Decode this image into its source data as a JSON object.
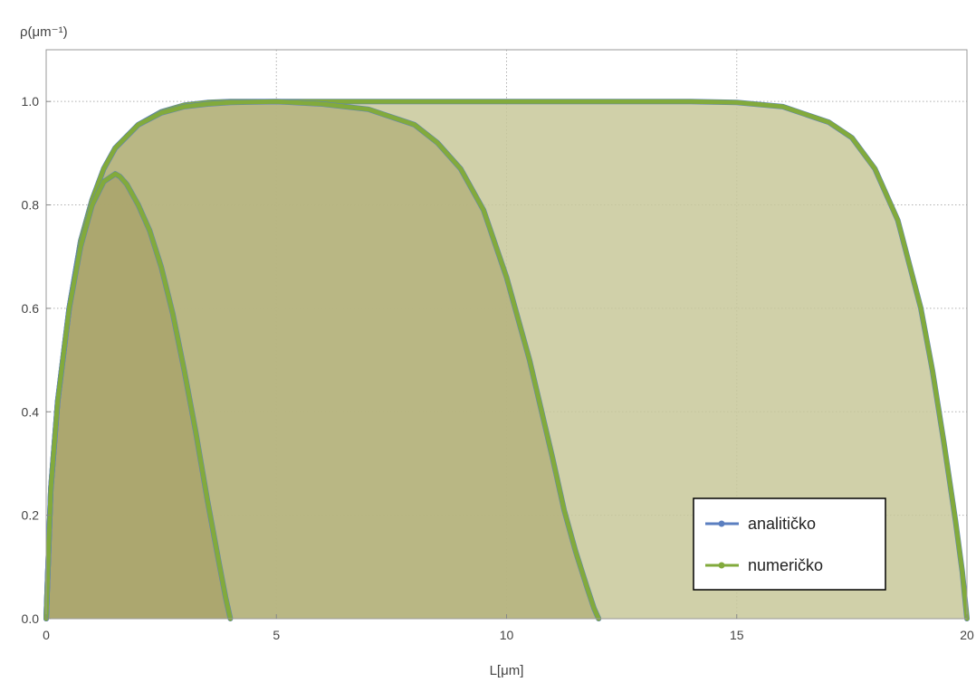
{
  "chart_data": {
    "type": "area",
    "title": "",
    "xlabel": "L[μm]",
    "ylabel": "ρ(μm⁻¹)",
    "xlim": [
      0,
      20
    ],
    "ylim": [
      0,
      1.1
    ],
    "xticks": [
      0,
      5,
      10,
      15,
      20
    ],
    "yticks": [
      0.0,
      0.2,
      0.4,
      0.6,
      0.8,
      1.0
    ],
    "xtick_labels": [
      "0",
      "5",
      "10",
      "15",
      "20"
    ],
    "ytick_labels": [
      "0.0",
      "0.2",
      "0.4",
      "0.6",
      "0.8",
      "1.0"
    ],
    "grid": true,
    "legend_position": "bottom-right",
    "legend": [
      {
        "name": "analitičko",
        "color": "#5b7fc0"
      },
      {
        "name": "numeričko",
        "color": "#82aa3c"
      }
    ],
    "curves": [
      {
        "L": 20,
        "fill": "#c8c89a",
        "x": [
          0,
          0.1,
          0.25,
          0.5,
          0.75,
          1.0,
          1.25,
          1.5,
          2,
          2.5,
          3,
          3.5,
          4,
          5,
          6,
          8,
          10,
          12,
          14,
          15,
          16,
          17,
          17.5,
          18,
          18.5,
          19,
          19.25,
          19.5,
          19.75,
          19.9,
          20
        ],
        "y": [
          0,
          0.25,
          0.42,
          0.6,
          0.73,
          0.81,
          0.87,
          0.91,
          0.955,
          0.98,
          0.993,
          0.998,
          1.0,
          1.0,
          1.0,
          1.0,
          1.0,
          1.0,
          1.0,
          0.998,
          0.99,
          0.96,
          0.93,
          0.87,
          0.77,
          0.6,
          0.48,
          0.34,
          0.19,
          0.09,
          0
        ]
      },
      {
        "L": 12,
        "fill": "#b5b37e",
        "x": [
          0,
          0.1,
          0.25,
          0.5,
          0.75,
          1.0,
          1.25,
          1.5,
          2,
          2.5,
          3,
          3.5,
          4,
          5,
          6,
          7,
          8,
          8.5,
          9,
          9.5,
          10,
          10.5,
          11,
          11.25,
          11.5,
          11.75,
          11.9,
          12
        ],
        "y": [
          0,
          0.25,
          0.42,
          0.6,
          0.73,
          0.81,
          0.87,
          0.91,
          0.955,
          0.978,
          0.99,
          0.995,
          0.998,
          1.0,
          0.995,
          0.985,
          0.955,
          0.92,
          0.87,
          0.79,
          0.66,
          0.5,
          0.31,
          0.21,
          0.13,
          0.06,
          0.02,
          0
        ]
      },
      {
        "L": 4,
        "fill": "#a9a56b",
        "x": [
          0,
          0.1,
          0.25,
          0.5,
          0.75,
          1.0,
          1.25,
          1.5,
          1.6,
          1.75,
          2.0,
          2.25,
          2.5,
          2.75,
          3.0,
          3.25,
          3.5,
          3.75,
          3.9,
          4
        ],
        "y": [
          0,
          0.25,
          0.42,
          0.6,
          0.72,
          0.8,
          0.845,
          0.86,
          0.855,
          0.84,
          0.8,
          0.75,
          0.68,
          0.59,
          0.48,
          0.36,
          0.23,
          0.11,
          0.04,
          0
        ]
      }
    ]
  }
}
